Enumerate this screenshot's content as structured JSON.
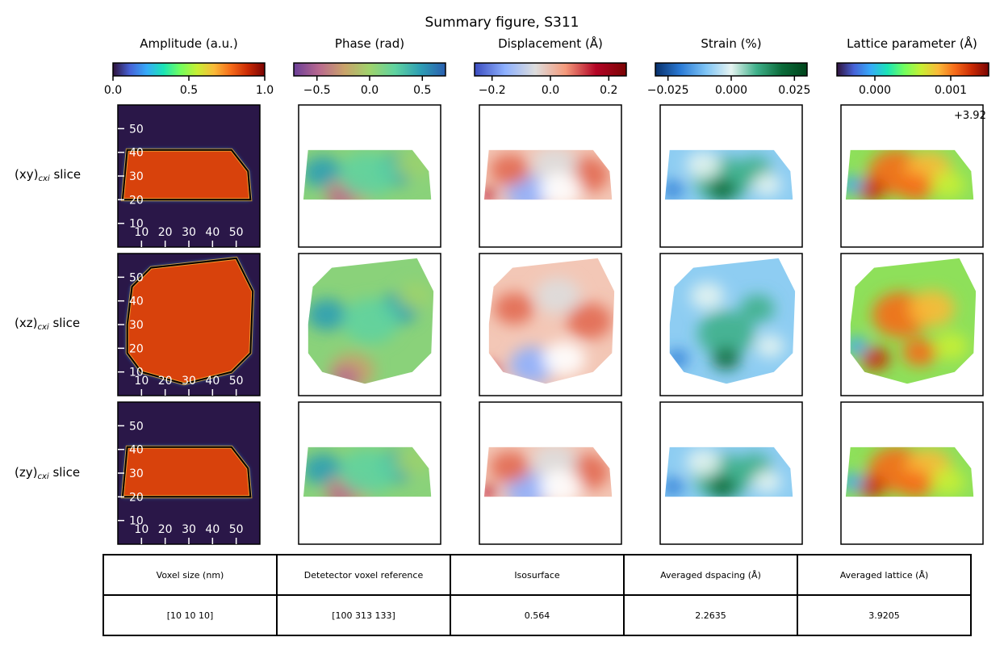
{
  "title": "Summary figure, S311",
  "columns": [
    {
      "title": "Amplitude (a.u.)",
      "colormap": [
        "#30123b",
        "#4662d7",
        "#36aaf9",
        "#1ae4b6",
        "#72fe5e",
        "#c8ef34",
        "#faba39",
        "#f66b19",
        "#ca2a04",
        "#7a0403"
      ],
      "ticks": [
        "0.0",
        "0.5",
        "1.0"
      ],
      "tick_values": [
        0,
        0.5,
        1.0
      ],
      "range": [
        0,
        1.0
      ],
      "offset": ""
    },
    {
      "title": "Phase (rad)",
      "colormap": [
        "#6b3f98",
        "#b9698f",
        "#c9a26a",
        "#9fd36c",
        "#5fd3a0",
        "#2e9fb4",
        "#2a5fb0"
      ],
      "ticks": [
        "−0.5",
        "0.0",
        "0.5"
      ],
      "tick_values": [
        -0.5,
        0.0,
        0.5
      ],
      "range": [
        -0.72,
        0.72
      ],
      "offset": ""
    },
    {
      "title": "Displacement (Å)",
      "colormap": [
        "#3b4cc0",
        "#8db0fe",
        "#dddddd",
        "#f49a7b",
        "#b40426",
        "#7a0403"
      ],
      "ticks": [
        "−0.2",
        "0.0",
        "0.2"
      ],
      "tick_values": [
        -0.2,
        0.0,
        0.2
      ],
      "range": [
        -0.26,
        0.26
      ],
      "offset": ""
    },
    {
      "title": "Strain (%)",
      "colormap": [
        "#08306b",
        "#2b7bd6",
        "#7ec4f5",
        "#e6f4f1",
        "#3fb08a",
        "#0b6b3a",
        "#00441b"
      ],
      "ticks": [
        "−0.025",
        "0.000",
        "0.025"
      ],
      "tick_values": [
        -0.025,
        0.0,
        0.025
      ],
      "range": [
        -0.03,
        0.03
      ],
      "offset": ""
    },
    {
      "title": "Lattice parameter (Å)",
      "colormap": [
        "#30123b",
        "#4662d7",
        "#36aaf9",
        "#1ae4b6",
        "#72fe5e",
        "#c8ef34",
        "#faba39",
        "#f66b19",
        "#ca2a04",
        "#7a0403"
      ],
      "ticks": [
        "0.000",
        "0.001"
      ],
      "tick_values": [
        0.0,
        0.001
      ],
      "range": [
        -0.0005,
        0.0015
      ],
      "offset": "+3.92"
    }
  ],
  "rows": [
    {
      "label": "(xy)",
      "subscript": "cxi",
      "suffix": " slice"
    },
    {
      "label": "(xz)",
      "subscript": "cxi",
      "suffix": " slice"
    },
    {
      "label": "(zy)",
      "subscript": "cxi",
      "suffix": " slice"
    }
  ],
  "amplitude_axes": {
    "x_ticks": [
      "10",
      "20",
      "30",
      "40",
      "50"
    ],
    "x_values": [
      10,
      20,
      30,
      40,
      50
    ],
    "y_ticks": [
      "10",
      "20",
      "30",
      "40",
      "50"
    ],
    "y_values": [
      10,
      20,
      30,
      40,
      50
    ],
    "range": [
      0,
      60
    ]
  },
  "summary_table": {
    "headers": [
      "Voxel size (nm)",
      "Detetector voxel reference",
      "Isosurface",
      "Averaged dspacing (Å)",
      "Averaged lattice (Å)"
    ],
    "values": [
      "[10 10 10]",
      "[100 313 133]",
      "0.564",
      "2.2635",
      "3.9205"
    ]
  },
  "colors": {
    "amplitude_background": "#2a1748",
    "amplitude_body": "#d8420c",
    "contour": "#000000"
  },
  "chart_data": {
    "type": "heatmap",
    "title": "Summary figure, S311",
    "panels": [
      "Amplitude (a.u.)",
      "Phase (rad)",
      "Displacement (Å)",
      "Strain (%)",
      "Lattice parameter (Å)"
    ],
    "rows": [
      "(xy)cxi slice",
      "(xz)cxi slice",
      "(zy)cxi slice"
    ],
    "isosurface": 0.564,
    "voxel_size_nm": [
      10,
      10,
      10
    ],
    "detector_voxel_reference": [
      100,
      313,
      133
    ],
    "averaged_dspacing": 2.2635,
    "averaged_lattice": 3.9205,
    "particle_outline_data_units": [
      [
        [
          2,
          20
        ],
        [
          4,
          41
        ],
        [
          48,
          41
        ],
        [
          55,
          32
        ],
        [
          56,
          20
        ]
      ],
      [
        [
          4,
          30
        ],
        [
          6,
          46
        ],
        [
          14,
          54
        ],
        [
          50,
          58
        ],
        [
          57,
          44
        ],
        [
          56,
          18
        ],
        [
          48,
          10
        ],
        [
          28,
          5
        ],
        [
          10,
          10
        ],
        [
          4,
          18
        ]
      ],
      [
        [
          2,
          20
        ],
        [
          4,
          41
        ],
        [
          48,
          41
        ],
        [
          55,
          32
        ],
        [
          56,
          20
        ]
      ]
    ],
    "grid": false
  }
}
